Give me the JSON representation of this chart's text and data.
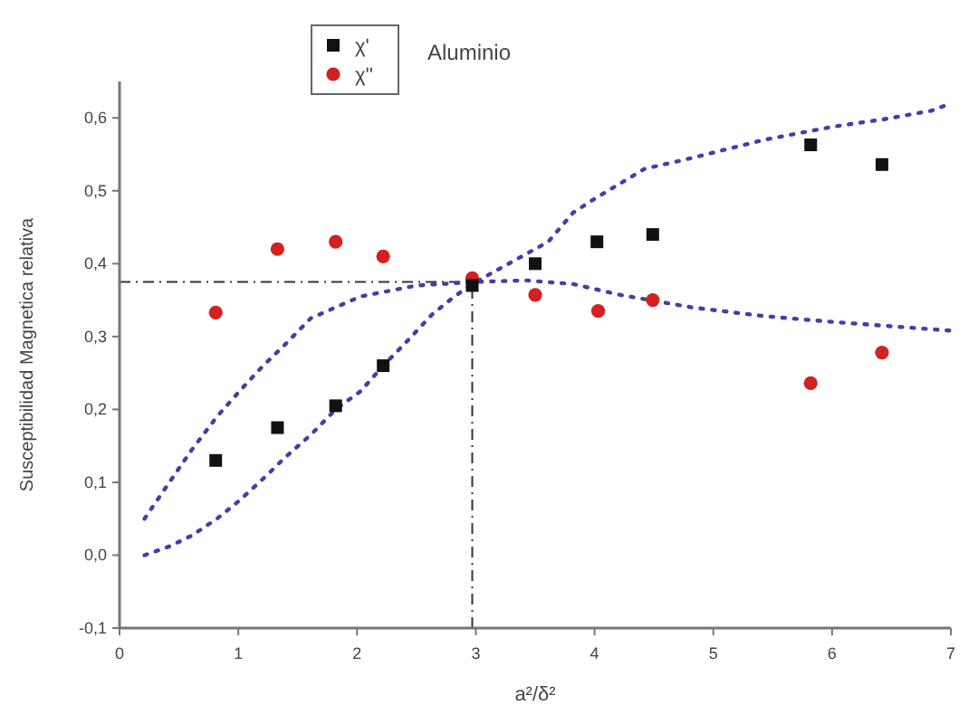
{
  "chart_data": {
    "type": "scatter",
    "title": "Aluminio",
    "xlabel": "a²/δ²",
    "ylabel": "Susceptibilidad Magnetica relativa",
    "xlim": [
      0,
      7
    ],
    "xticks": [
      0,
      1,
      2,
      3,
      4,
      5,
      6,
      7
    ],
    "ylim": [
      -0.1,
      0.65
    ],
    "yticks": [
      {
        "value": -0.1,
        "label": "-0,1"
      },
      {
        "value": 0,
        "label": "0,0"
      },
      {
        "value": 0.1,
        "label": "0,1"
      },
      {
        "value": 0.2,
        "label": "0,2"
      },
      {
        "value": 0.3,
        "label": "0,3"
      },
      {
        "value": 0.4,
        "label": "0,4"
      },
      {
        "value": 0.5,
        "label": "0,5"
      },
      {
        "value": 0.6,
        "label": "0,6"
      }
    ],
    "grid": false,
    "legend": "top",
    "series": [
      {
        "name": "χ'",
        "marker": "square",
        "color": "#111111",
        "x": [
          0.81,
          1.33,
          1.82,
          2.22,
          2.97,
          3.5,
          4.02,
          4.49,
          5.82,
          6.42
        ],
        "values": [
          0.13,
          0.175,
          0.205,
          0.26,
          0.37,
          0.4,
          0.43,
          0.44,
          0.563,
          0.536
        ]
      },
      {
        "name": "χ''",
        "marker": "circle",
        "color": "#d42020",
        "x": [
          0.81,
          1.33,
          1.82,
          2.22,
          2.97,
          3.5,
          4.03,
          4.49,
          5.82,
          6.42
        ],
        "values": [
          0.333,
          0.42,
          0.43,
          0.41,
          0.38,
          0.357,
          0.335,
          0.35,
          0.236,
          0.278
        ]
      },
      {
        "type": "line",
        "line_style": "dotted",
        "marker": "none",
        "color": "#4040a8",
        "x": [
          0.21,
          0.42,
          0.61,
          0.82,
          1.01,
          1.21,
          1.4,
          1.61,
          1.82,
          2.03,
          2.5,
          3.0,
          3.42,
          3.82,
          4.22,
          4.82,
          5.43,
          6.01,
          6.84,
          7.0
        ],
        "values": [
          0.05,
          0.1,
          0.145,
          0.19,
          0.225,
          0.26,
          0.29,
          0.325,
          0.34,
          0.355,
          0.37,
          0.375,
          0.377,
          0.372,
          0.357,
          0.34,
          0.328,
          0.32,
          0.31,
          0.308
        ]
      },
      {
        "type": "line",
        "line_style": "dotted",
        "marker": "none",
        "color": "#4040a8",
        "x": [
          0.21,
          0.42,
          0.61,
          0.82,
          1.01,
          1.21,
          1.4,
          1.61,
          1.82,
          2.03,
          2.22,
          2.43,
          2.63,
          2.82,
          3.0,
          3.61,
          3.82,
          4.01,
          4.42,
          4.82,
          5.43,
          6.01,
          6.43,
          6.84,
          7.0
        ],
        "values": [
          0.0,
          0.012,
          0.027,
          0.05,
          0.075,
          0.105,
          0.135,
          0.165,
          0.2,
          0.225,
          0.26,
          0.295,
          0.33,
          0.355,
          0.375,
          0.43,
          0.47,
          0.49,
          0.53,
          0.545,
          0.57,
          0.588,
          0.598,
          0.61,
          0.62
        ]
      }
    ],
    "ref_lines": [
      {
        "axis": "y",
        "value": 0.375,
        "line_style": "dashed",
        "color": "#333333"
      },
      {
        "axis": "x",
        "value": 2.97,
        "line_style": "dashed",
        "color": "#333333"
      }
    ]
  }
}
